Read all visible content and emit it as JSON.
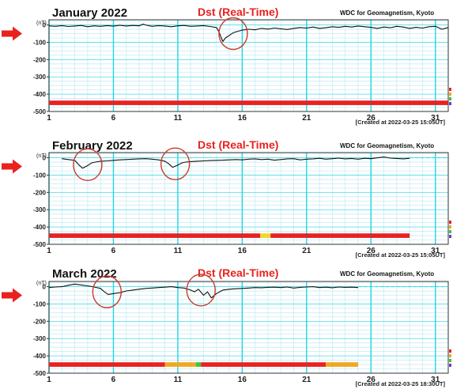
{
  "figure": {
    "source_label": "WDC for Geomagnetism, Kyoto",
    "index_title": "Dst (Real-Time)",
    "unit_label": "(nT)"
  },
  "colors": {
    "grid": "#c6ecf3",
    "major_grid": "#1fd6e4",
    "trace": "#111111",
    "title_red": "#e8221e",
    "circle": "#cc3a2a",
    "arrow": "#e8221e",
    "quality_red": "#e82222",
    "quality_orange": "#f0a823",
    "quality_yellow": "#efd62b",
    "quality_green": "#42c23f",
    "quality_purple": "#6a3fd0"
  },
  "chart_data": [
    {
      "type": "line",
      "title": "January  2022",
      "subtitle": "Dst (Real-Time)",
      "source": "WDC for Geomagnetism, Kyoto",
      "ylabel": "(nT)",
      "yticks": [
        0,
        -100,
        -200,
        -300,
        -400,
        -500
      ],
      "ytick_labels": [
        "0",
        "-100",
        "-200",
        "-300",
        "-400",
        "-500"
      ],
      "ylim": [
        -500,
        30
      ],
      "xlim": [
        1,
        32
      ],
      "xticks": [
        1,
        6,
        11,
        16,
        21,
        26,
        31
      ],
      "xtick_labels": [
        "1",
        "6",
        "11",
        "16",
        "21",
        "26",
        "31"
      ],
      "major_days": [
        1,
        6,
        11,
        16,
        21,
        26,
        31
      ],
      "grid": true,
      "x_unit": "day of month",
      "series": [
        {
          "x": [
            1,
            1.5,
            2,
            2.5,
            3,
            3.5,
            4,
            4.5,
            5,
            5.5,
            6,
            6.5,
            7,
            7.5,
            8,
            8.3,
            8.6,
            9,
            9.5,
            10,
            10.5,
            11,
            11.5,
            12,
            12.5,
            13,
            13.5,
            14,
            14.2,
            14.35,
            14.5,
            14.7,
            15,
            15.3,
            15.6,
            16,
            16.5,
            17,
            17.5,
            18,
            18.5,
            19,
            19.5,
            20,
            20.5,
            21,
            21.5,
            22,
            22.5,
            23,
            23.5,
            24,
            24.5,
            25,
            25.5,
            26,
            26.5,
            27,
            27.5,
            28,
            28.5,
            29,
            29.5,
            30,
            30.5,
            31,
            31.5,
            32
          ],
          "y": [
            -5,
            -8,
            -4,
            -9,
            -6,
            -3,
            -10,
            -5,
            -8,
            -4,
            -7,
            -2,
            -6,
            -3,
            -5,
            5,
            -2,
            -8,
            -4,
            -6,
            -10,
            -5,
            -3,
            -8,
            -6,
            -4,
            -9,
            -15,
            -40,
            -70,
            -95,
            -75,
            -60,
            -45,
            -38,
            -30,
            -25,
            -28,
            -20,
            -24,
            -18,
            -22,
            -26,
            -20,
            -15,
            -18,
            -12,
            -20,
            -16,
            -10,
            -14,
            -8,
            -12,
            -6,
            -10,
            -14,
            -20,
            -12,
            -16,
            -8,
            -12,
            -20,
            -14,
            -18,
            -10,
            -8,
            -25,
            -15
          ]
        }
      ],
      "annotations": [
        {
          "type": "circle",
          "x": 15.3,
          "y": -50
        }
      ],
      "quality_bar": [
        {
          "from": 1,
          "to": 32,
          "color": "red"
        }
      ],
      "created": "[Created at 2022-03-25 15:05UT]",
      "data_end": 32
    },
    {
      "type": "line",
      "title": "February  2022",
      "subtitle": "Dst (Real-Time)",
      "source": "WDC for Geomagnetism, Kyoto",
      "ylabel": "(nT)",
      "yticks": [
        0,
        -100,
        -200,
        -300,
        -400,
        -500
      ],
      "ytick_labels": [
        "0",
        "-100",
        "-200",
        "-300",
        "-400",
        "-500"
      ],
      "ylim": [
        -500,
        30
      ],
      "xlim": [
        1,
        32
      ],
      "xticks": [
        1,
        6,
        11,
        16,
        21,
        26,
        31
      ],
      "xtick_labels": [
        "1",
        "6",
        "11",
        "16",
        "21",
        "26",
        "31"
      ],
      "major_days": [
        1,
        6,
        11,
        16,
        21,
        26,
        31
      ],
      "grid": true,
      "x_unit": "day of month",
      "series": [
        {
          "x": [
            2,
            2.5,
            3,
            3.3,
            3.6,
            4,
            4.3,
            4.6,
            5,
            5.5,
            6,
            6.5,
            7,
            7.5,
            8,
            8.5,
            9,
            9.5,
            10,
            10.3,
            10.6,
            11,
            11.3,
            11.6,
            12,
            12.5,
            13,
            13.5,
            14,
            14.5,
            15,
            15.5,
            16,
            16.5,
            17,
            17.5,
            18,
            18.5,
            19,
            19.5,
            20,
            20.5,
            21,
            21.5,
            22,
            22.5,
            23,
            23.5,
            24,
            24.5,
            25,
            25.5,
            26,
            26.5,
            27,
            27.5,
            28,
            28.5,
            29
          ],
          "y": [
            -5,
            -10,
            -15,
            -40,
            -60,
            -45,
            -30,
            -25,
            -20,
            -18,
            -15,
            -12,
            -10,
            -8,
            -6,
            -5,
            -8,
            -12,
            -20,
            -35,
            -55,
            -42,
            -30,
            -25,
            -22,
            -20,
            -18,
            -16,
            -15,
            -14,
            -12,
            -10,
            -12,
            -8,
            -6,
            -10,
            -8,
            -14,
            -10,
            -6,
            -5,
            -12,
            -8,
            -6,
            -3,
            -8,
            -5,
            -2,
            -6,
            -4,
            -8,
            -3,
            -5,
            0,
            5,
            -2,
            -4,
            -6,
            -3
          ]
        }
      ],
      "annotations": [
        {
          "type": "circle",
          "x": 4,
          "y": -40
        },
        {
          "type": "circle",
          "x": 10.8,
          "y": -35
        }
      ],
      "quality_bar": [
        {
          "from": 1,
          "to": 17.4,
          "color": "red"
        },
        {
          "from": 17.4,
          "to": 18.2,
          "color": "yellow"
        },
        {
          "from": 18.2,
          "to": 29,
          "color": "red"
        }
      ],
      "created": "[Created at 2022-03-25 15:05UT]",
      "data_end": 29
    },
    {
      "type": "line",
      "title": "March  2022",
      "subtitle": "Dst (Real-Time)",
      "source": "WDC for Geomagnetism, Kyoto",
      "ylabel": "(nT)",
      "yticks": [
        0,
        -100,
        -200,
        -300,
        -400,
        -500
      ],
      "ytick_labels": [
        "0",
        "-100",
        "-200",
        "-300",
        "-400",
        "-500"
      ],
      "ylim": [
        -500,
        30
      ],
      "xlim": [
        1,
        32
      ],
      "xticks": [
        1,
        6,
        11,
        16,
        21,
        26,
        31
      ],
      "xtick_labels": [
        "1",
        "6",
        "11",
        "16",
        "21",
        "26",
        "31"
      ],
      "major_days": [
        1,
        6,
        11,
        16,
        21,
        26,
        31
      ],
      "grid": true,
      "x_unit": "day of month",
      "series": [
        {
          "x": [
            1,
            1.5,
            2,
            2.5,
            3,
            3.5,
            4,
            4.5,
            5,
            5.3,
            5.6,
            6,
            6.5,
            7,
            7.5,
            8,
            8.5,
            9,
            9.5,
            10,
            10.5,
            11,
            11.5,
            12,
            12.3,
            12.6,
            13,
            13.3,
            13.6,
            14,
            14.5,
            15,
            15.5,
            16,
            16.5,
            17,
            17.5,
            18,
            18.5,
            19,
            19.5,
            20,
            20.5,
            21,
            21.5,
            22,
            22.5,
            23,
            23.5,
            24,
            24.5,
            25
          ],
          "y": [
            -5,
            -2,
            0,
            8,
            15,
            10,
            5,
            -2,
            -10,
            -30,
            -45,
            -40,
            -35,
            -25,
            -20,
            -15,
            -10,
            -8,
            -5,
            -3,
            0,
            -5,
            -8,
            -20,
            -30,
            -15,
            -50,
            -30,
            -65,
            -40,
            -20,
            -15,
            -12,
            -10,
            -8,
            -5,
            -6,
            -4,
            -3,
            -5,
            -2,
            -8,
            -4,
            -2,
            0,
            -5,
            -3,
            -6,
            -2,
            -4,
            -3,
            -5
          ]
        }
      ],
      "annotations": [
        {
          "type": "circle",
          "x": 5.5,
          "y": -30
        },
        {
          "type": "circle",
          "x": 12.8,
          "y": -20
        }
      ],
      "quality_bar": [
        {
          "from": 1,
          "to": 10,
          "color": "red"
        },
        {
          "from": 10,
          "to": 12.4,
          "color": "orange"
        },
        {
          "from": 12.4,
          "to": 12.8,
          "color": "green"
        },
        {
          "from": 12.8,
          "to": 22.5,
          "color": "red"
        },
        {
          "from": 22.5,
          "to": 25,
          "color": "orange"
        }
      ],
      "created": "[Created at 2022-03-25 18:30UT]",
      "data_end": 25
    }
  ]
}
